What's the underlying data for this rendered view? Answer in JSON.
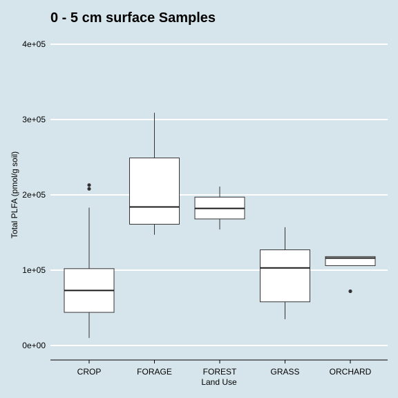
{
  "chart_data": {
    "type": "box",
    "title": "0 - 5 cm surface Samples",
    "xlabel": "Land Use",
    "ylabel": "Total PLFA (pmol/g soil)",
    "ylim": [
      -20000,
      420000
    ],
    "yticks": [
      0,
      100000,
      200000,
      300000,
      400000
    ],
    "ytick_labels": [
      "0e+00",
      "1e+05",
      "2e+05",
      "3e+05",
      "4e+05"
    ],
    "grid": true,
    "categories": [
      "CROP",
      "FORAGE",
      "FOREST",
      "GRASS",
      "ORCHARD"
    ],
    "boxes": [
      {
        "category": "CROP",
        "min": 10000,
        "q1": 44000,
        "median": 73000,
        "q3": 102000,
        "max": 183000,
        "outliers": [
          208000,
          213000
        ]
      },
      {
        "category": "FORAGE",
        "min": 147000,
        "q1": 161000,
        "median": 184000,
        "q3": 249000,
        "max": 309000,
        "outliers": []
      },
      {
        "category": "FOREST",
        "min": 154000,
        "q1": 168000,
        "median": 182000,
        "q3": 197000,
        "max": 211000,
        "outliers": []
      },
      {
        "category": "GRASS",
        "min": 35000,
        "q1": 58000,
        "median": 103000,
        "q3": 127000,
        "max": 157000,
        "outliers": []
      },
      {
        "category": "ORCHARD",
        "min": 106000,
        "q1": 106000,
        "median": 116000,
        "q3": 118000,
        "max": 118000,
        "outliers": [
          72000
        ]
      }
    ]
  }
}
